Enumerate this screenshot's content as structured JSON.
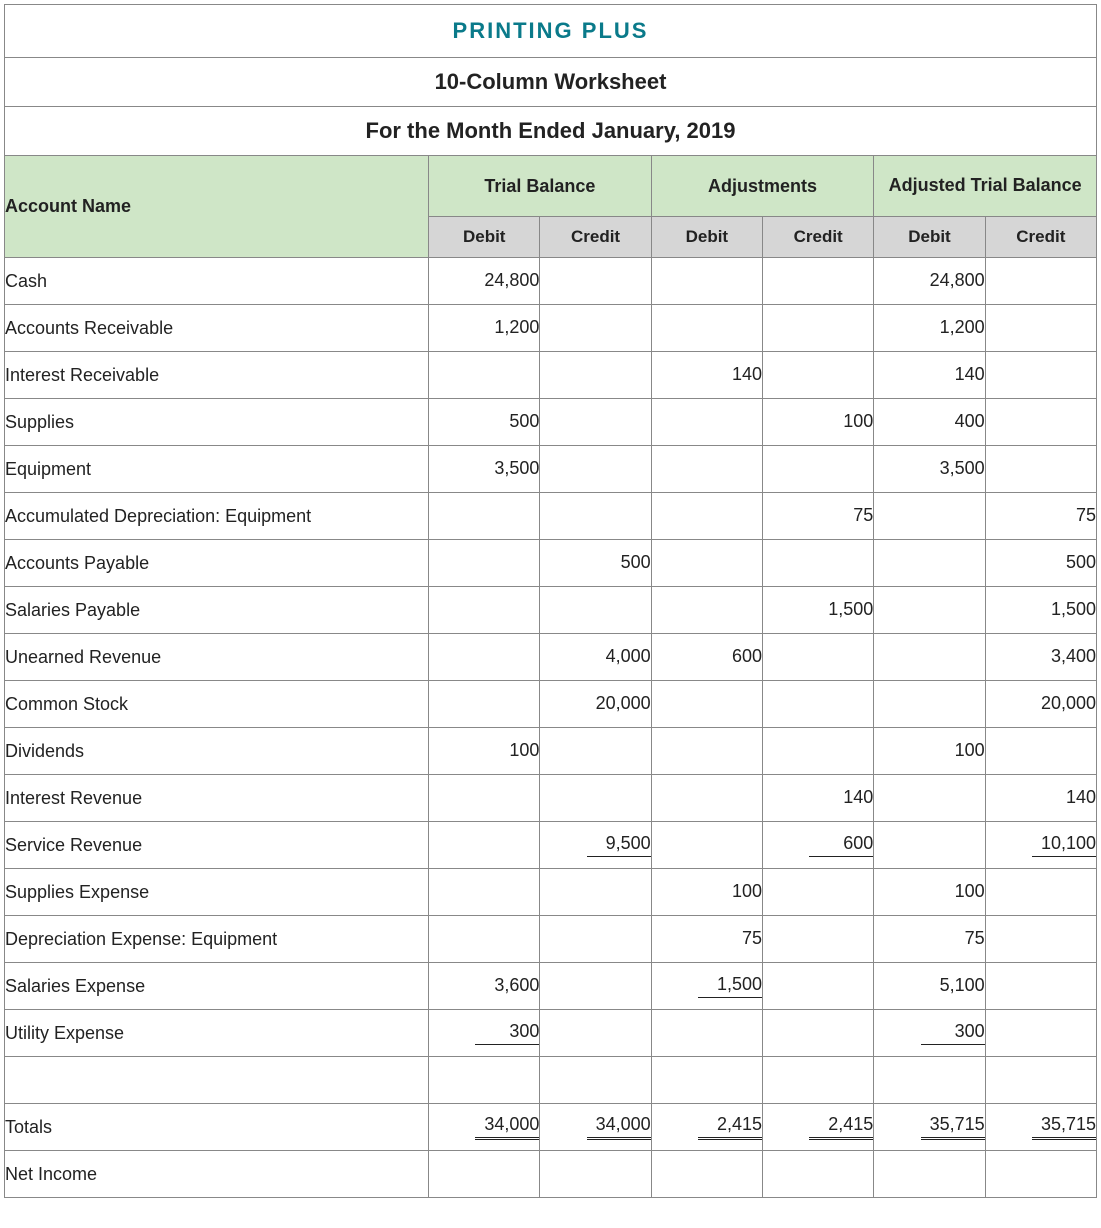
{
  "company_name": "PRINTING PLUS",
  "report_title": "10-Column Worksheet",
  "period": "For the Month Ended January, 2019",
  "header": {
    "account": "Account Name",
    "trial_balance": "Trial Balance",
    "adjustments": "Adjustments",
    "adjusted_trial_balance": "Adjusted Trial Balance",
    "debit": "Debit",
    "credit": "Credit"
  },
  "rows": [
    {
      "account": "Cash",
      "tb_debit": "24,800",
      "tb_credit": "",
      "adj_debit": "",
      "adj_credit": "",
      "atb_debit": "24,800",
      "atb_credit": ""
    },
    {
      "account": "Accounts Receivable",
      "tb_debit": "1,200",
      "tb_credit": "",
      "adj_debit": "",
      "adj_credit": "",
      "atb_debit": "1,200",
      "atb_credit": ""
    },
    {
      "account": "Interest Receivable",
      "tb_debit": "",
      "tb_credit": "",
      "adj_debit": "140",
      "adj_credit": "",
      "atb_debit": "140",
      "atb_credit": ""
    },
    {
      "account": "Supplies",
      "tb_debit": "500",
      "tb_credit": "",
      "adj_debit": "",
      "adj_credit": "100",
      "atb_debit": "400",
      "atb_credit": ""
    },
    {
      "account": "Equipment",
      "tb_debit": "3,500",
      "tb_credit": "",
      "adj_debit": "",
      "adj_credit": "",
      "atb_debit": "3,500",
      "atb_credit": ""
    },
    {
      "account": "Accumulated Depreciation: Equipment",
      "tb_debit": "",
      "tb_credit": "",
      "adj_debit": "",
      "adj_credit": "75",
      "atb_debit": "",
      "atb_credit": "75"
    },
    {
      "account": "Accounts Payable",
      "tb_debit": "",
      "tb_credit": "500",
      "adj_debit": "",
      "adj_credit": "",
      "atb_debit": "",
      "atb_credit": "500"
    },
    {
      "account": "Salaries Payable",
      "tb_debit": "",
      "tb_credit": "",
      "adj_debit": "",
      "adj_credit": "1,500",
      "atb_debit": "",
      "atb_credit": "1,500"
    },
    {
      "account": "Unearned Revenue",
      "tb_debit": "",
      "tb_credit": "4,000",
      "adj_debit": "600",
      "adj_credit": "",
      "atb_debit": "",
      "atb_credit": "3,400"
    },
    {
      "account": "Common Stock",
      "tb_debit": "",
      "tb_credit": "20,000",
      "adj_debit": "",
      "adj_credit": "",
      "atb_debit": "",
      "atb_credit": "20,000"
    },
    {
      "account": "Dividends",
      "tb_debit": "100",
      "tb_credit": "",
      "adj_debit": "",
      "adj_credit": "",
      "atb_debit": "100",
      "atb_credit": ""
    },
    {
      "account": "Interest Revenue",
      "tb_debit": "",
      "tb_credit": "",
      "adj_debit": "",
      "adj_credit": "140",
      "atb_debit": "",
      "atb_credit": "140"
    },
    {
      "account": "Service Revenue",
      "tb_debit": "",
      "tb_credit": "9,500",
      "adj_debit": "",
      "adj_credit": "600",
      "atb_debit": "",
      "atb_credit": "10,100",
      "u": {
        "tb_credit": "single",
        "adj_credit": "single",
        "atb_credit": "single"
      }
    },
    {
      "account": "Supplies Expense",
      "tb_debit": "",
      "tb_credit": "",
      "adj_debit": "100",
      "adj_credit": "",
      "atb_debit": "100",
      "atb_credit": ""
    },
    {
      "account": "Depreciation Expense: Equipment",
      "tb_debit": "",
      "tb_credit": "",
      "adj_debit": "75",
      "adj_credit": "",
      "atb_debit": "75",
      "atb_credit": ""
    },
    {
      "account": "Salaries Expense",
      "tb_debit": "3,600",
      "tb_credit": "",
      "adj_debit": "1,500",
      "adj_credit": "",
      "atb_debit": "5,100",
      "atb_credit": "",
      "u": {
        "adj_debit": "single"
      }
    },
    {
      "account": "Utility Expense",
      "tb_debit": "300",
      "tb_credit": "",
      "adj_debit": "",
      "adj_credit": "",
      "atb_debit": "300",
      "atb_credit": "",
      "u": {
        "tb_debit": "single",
        "atb_debit": "single"
      }
    },
    {
      "account": "",
      "tb_debit": "",
      "tb_credit": "",
      "adj_debit": "",
      "adj_credit": "",
      "atb_debit": "",
      "atb_credit": ""
    },
    {
      "account": "Totals",
      "tb_debit": "34,000",
      "tb_credit": "34,000",
      "adj_debit": "2,415",
      "adj_credit": "2,415",
      "atb_debit": "35,715",
      "atb_credit": "35,715",
      "u": {
        "tb_debit": "double",
        "tb_credit": "double",
        "adj_debit": "double",
        "adj_credit": "double",
        "atb_debit": "double",
        "atb_credit": "double"
      }
    },
    {
      "account": "Net Income",
      "tb_debit": "",
      "tb_credit": "",
      "adj_debit": "",
      "adj_credit": "",
      "atb_debit": "",
      "atb_credit": ""
    }
  ],
  "style": {
    "header_bg": "#cfe6c7",
    "subheader_bg": "#d6d6d6",
    "title_color": "#0a7a8a",
    "border_color": "#888888",
    "font_family": "Arial",
    "col_widths": {
      "account": 400,
      "num": 105
    }
  }
}
